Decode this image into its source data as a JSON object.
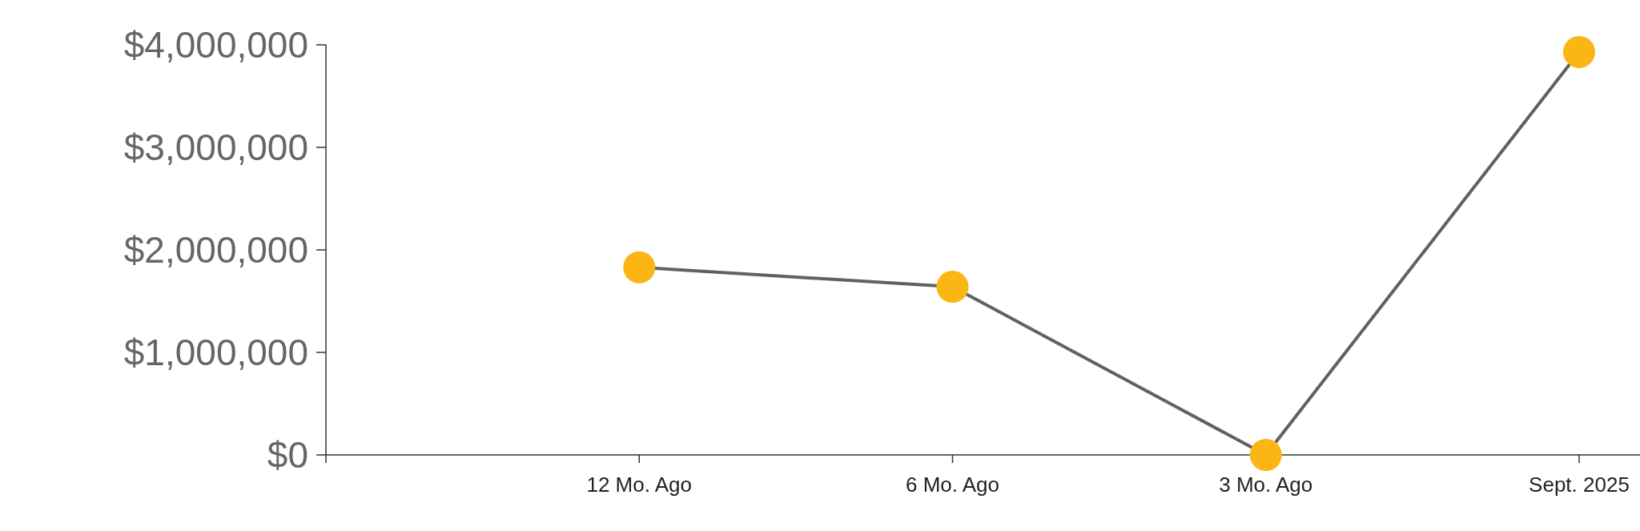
{
  "chart_data": {
    "type": "line",
    "categories": [
      null,
      "12 Mo. Ago",
      "6 Mo. Ago",
      "3 Mo. Ago",
      "Sept. 2025"
    ],
    "series": [
      {
        "color": "#fbb515",
        "values": [
          null,
          1830000,
          1640000,
          0,
          3930000
        ]
      }
    ],
    "ylim": [
      0,
      4000000
    ],
    "yticks": [
      {
        "value": 0,
        "label": "$0"
      },
      {
        "value": 1000000,
        "label": "$1,000,000"
      },
      {
        "value": 2000000,
        "label": "$2,000,000"
      },
      {
        "value": 3000000,
        "label": "$3,000,000"
      },
      {
        "value": 4000000,
        "label": "$4,000,000"
      }
    ],
    "marker": "circle",
    "line_style": "solid"
  }
}
